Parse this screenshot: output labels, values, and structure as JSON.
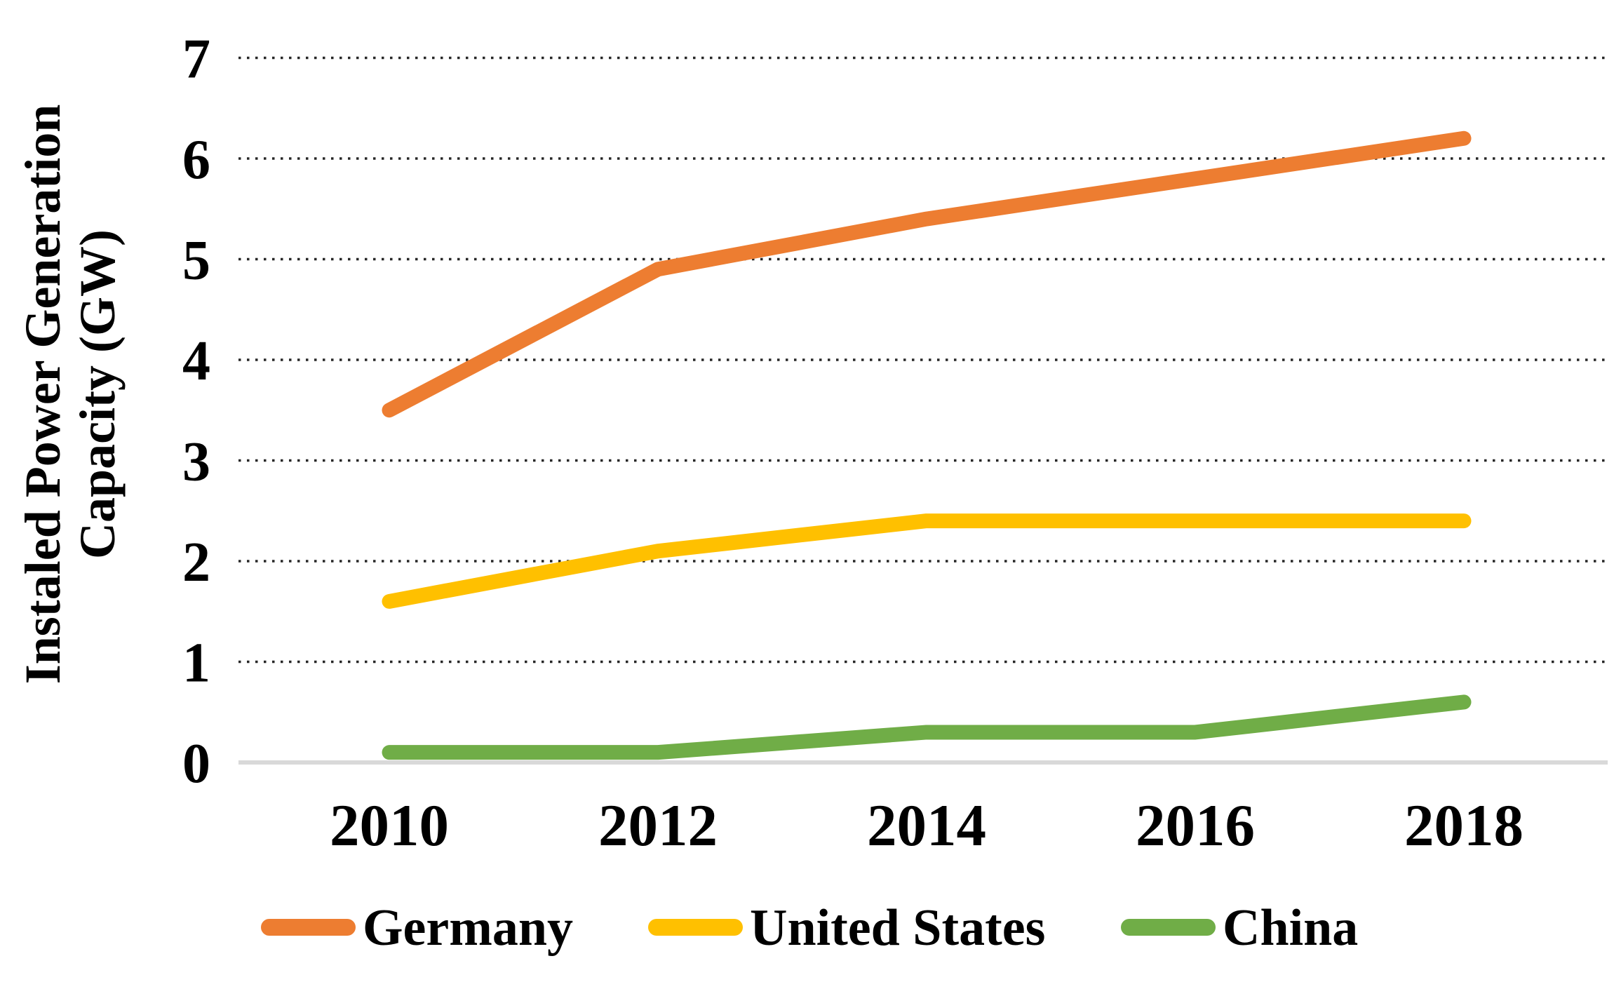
{
  "chart_data": {
    "type": "line",
    "title": "",
    "ylabel_line1": "Instaled Power Generation",
    "ylabel_line2": "Capacity (GW)",
    "xlabel": "",
    "categories": [
      "2010",
      "2012",
      "2014",
      "2016",
      "2018"
    ],
    "y_ticks": [
      "0",
      "1",
      "2",
      "3",
      "4",
      "5",
      "6",
      "7"
    ],
    "ylim": [
      0,
      7
    ],
    "grid": "horizontal-dotted",
    "legend_position": "bottom",
    "series": [
      {
        "name": "Germany",
        "color": "#ED7D31",
        "values": [
          3.5,
          4.9,
          5.4,
          5.8,
          6.2
        ]
      },
      {
        "name": "United States",
        "color": "#FFC000",
        "values": [
          1.6,
          2.1,
          2.4,
          2.4,
          2.4
        ]
      },
      {
        "name": "China",
        "color": "#70AD47",
        "values": [
          0.1,
          0.1,
          0.3,
          0.3,
          0.6
        ]
      }
    ],
    "colors": {
      "axis_line": "#D9D9D9",
      "gridline": "#262626",
      "text": "#000000",
      "background": "#FFFFFF"
    }
  }
}
